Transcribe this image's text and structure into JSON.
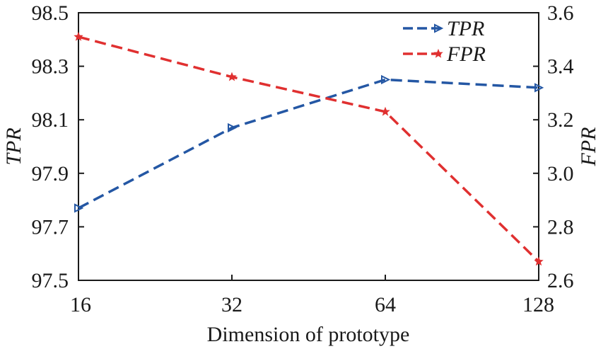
{
  "chart_data": {
    "type": "line",
    "title": "",
    "xlabel": "Dimension of prototype",
    "ylabel_left": "TPR",
    "ylabel_right": "FPR",
    "categories": [
      "16",
      "32",
      "64",
      "128"
    ],
    "y_left": {
      "lim": [
        97.5,
        98.5
      ],
      "ticks": [
        "97.5",
        "97.7",
        "97.9",
        "98.1",
        "98.3",
        "98.5"
      ]
    },
    "y_right": {
      "lim": [
        2.6,
        3.6
      ],
      "ticks": [
        "2.6",
        "2.8",
        "3.0",
        "3.2",
        "3.4",
        "3.6"
      ]
    },
    "series": [
      {
        "name": "TPR",
        "axis": "left",
        "color": "#2457a4",
        "marker": "triangle-right",
        "line_style": "dashed",
        "values": [
          97.77,
          98.07,
          98.25,
          98.22
        ]
      },
      {
        "name": "FPR",
        "axis": "right",
        "color": "#e03030",
        "marker": "star",
        "line_style": "dashed",
        "values": [
          3.51,
          3.36,
          3.23,
          2.67
        ]
      }
    ],
    "legend": {
      "position": "top-right"
    },
    "grid": false
  }
}
